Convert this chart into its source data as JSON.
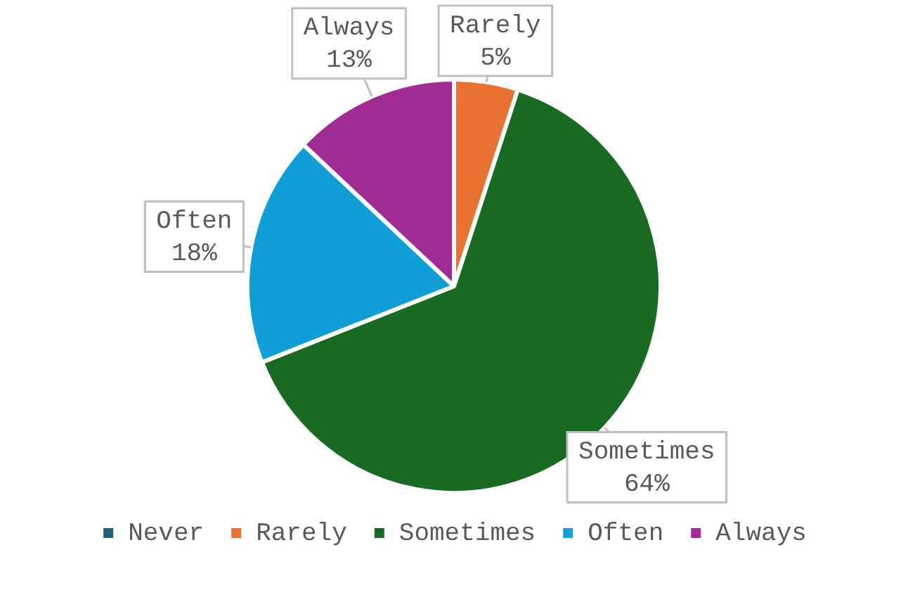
{
  "chart_data": {
    "type": "pie",
    "categories": [
      "Never",
      "Rarely",
      "Sometimes",
      "Often",
      "Always"
    ],
    "values": [
      0,
      5,
      64,
      18,
      13
    ],
    "colors": [
      "#1f5f7f",
      "#e97132",
      "#196b24",
      "#0f9ed5",
      "#a02b93"
    ],
    "value_labels": [
      null,
      "5%",
      "64%",
      "18%",
      "13%"
    ],
    "legend": "bottom"
  }
}
